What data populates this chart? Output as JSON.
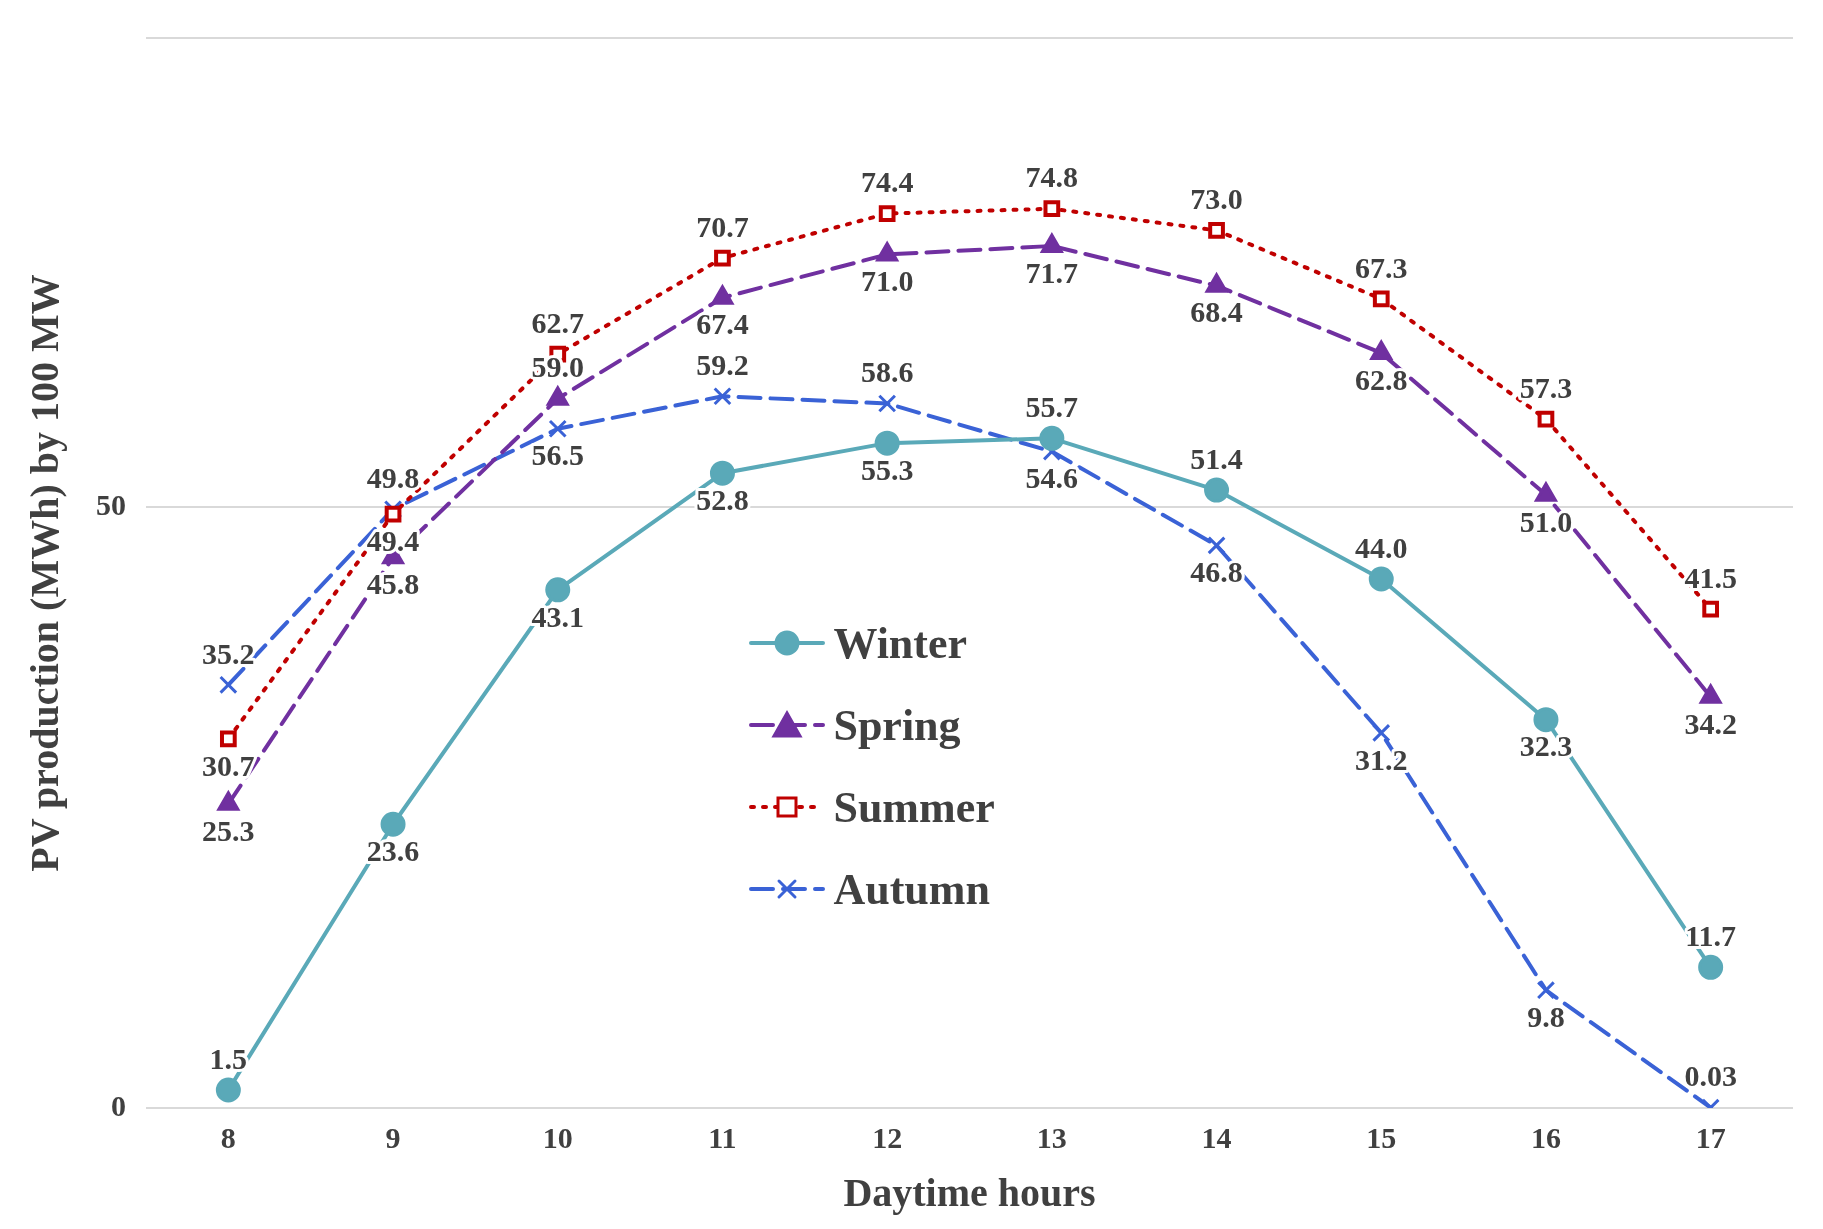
{
  "chart_data": {
    "type": "line",
    "xlabel": "Daytime hours",
    "ylabel": "PV production (MWh) by 100 MW",
    "categories": [
      "8",
      "9",
      "10",
      "11",
      "12",
      "13",
      "14",
      "15",
      "16",
      "17"
    ],
    "ylim": [
      0,
      89
    ],
    "yticks": [
      0,
      50
    ],
    "grid": "y",
    "legend": "center",
    "series": [
      {
        "name": "Winter",
        "color": "#5aa9b8",
        "marker": "circle",
        "line_style": "solid",
        "values": [
          1.5,
          23.6,
          43.1,
          52.8,
          55.3,
          55.7,
          51.4,
          44.0,
          32.3,
          11.7
        ],
        "value_labels": [
          "1.5",
          "23.6",
          "43.1",
          "52.8",
          "55.3",
          "55.7",
          "51.4",
          "44.0",
          "32.3",
          "11.7"
        ]
      },
      {
        "name": "Spring",
        "color": "#7030a0",
        "marker": "triangle",
        "line_style": "dashed",
        "values": [
          25.3,
          45.8,
          59.0,
          67.4,
          71.0,
          71.7,
          68.4,
          62.8,
          51.0,
          34.2
        ],
        "value_labels": [
          "25.3",
          "45.8",
          "59.0",
          "67.4",
          "71.0",
          "71.7",
          "68.4",
          "62.8",
          "51.0",
          "34.2"
        ]
      },
      {
        "name": "Summer",
        "color": "#c00000",
        "marker": "square",
        "line_style": "dotted",
        "values": [
          30.7,
          49.4,
          62.7,
          70.7,
          74.4,
          74.8,
          73.0,
          67.3,
          57.3,
          41.5
        ],
        "value_labels": [
          "30.7",
          "49.4",
          "62.7",
          "70.7",
          "74.4",
          "74.8",
          "73.0",
          "67.3",
          "57.3",
          "41.5"
        ]
      },
      {
        "name": "Autumn",
        "color": "#3a62d6",
        "marker": "cross",
        "line_style": "dashed",
        "values": [
          35.2,
          49.8,
          56.5,
          59.2,
          58.6,
          54.6,
          46.8,
          31.2,
          9.8,
          0.03
        ],
        "value_labels": [
          "35.2",
          "49.8",
          "56.5",
          "59.2",
          "58.6",
          "54.6",
          "46.8",
          "31.2",
          "9.8",
          "0.03"
        ]
      }
    ]
  }
}
